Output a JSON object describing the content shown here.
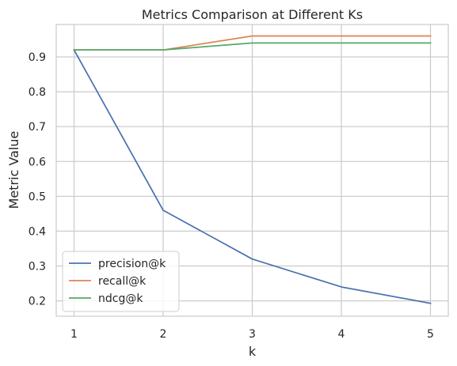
{
  "chart_data": {
    "type": "line",
    "title": "Metrics Comparison at Different Ks",
    "xlabel": "k",
    "ylabel": "Metric Value",
    "x": [
      1,
      2,
      3,
      4,
      5
    ],
    "xticks": [
      "1",
      "2",
      "3",
      "4",
      "5"
    ],
    "yticks": [
      "0.2",
      "0.3",
      "0.4",
      "0.5",
      "0.6",
      "0.7",
      "0.8",
      "0.9"
    ],
    "xlim": [
      0.8,
      5.2
    ],
    "ylim": [
      0.156,
      0.993
    ],
    "grid": true,
    "legend_position": "lower-left",
    "series": [
      {
        "name": "precision@k",
        "color": "#4c72b0",
        "values": [
          0.92,
          0.46,
          0.32,
          0.24,
          0.193
        ]
      },
      {
        "name": "recall@k",
        "color": "#dd8452",
        "values": [
          0.92,
          0.92,
          0.96,
          0.96,
          0.96
        ]
      },
      {
        "name": "ndcg@k",
        "color": "#55a868",
        "values": [
          0.92,
          0.92,
          0.94,
          0.94,
          0.94
        ]
      }
    ]
  }
}
